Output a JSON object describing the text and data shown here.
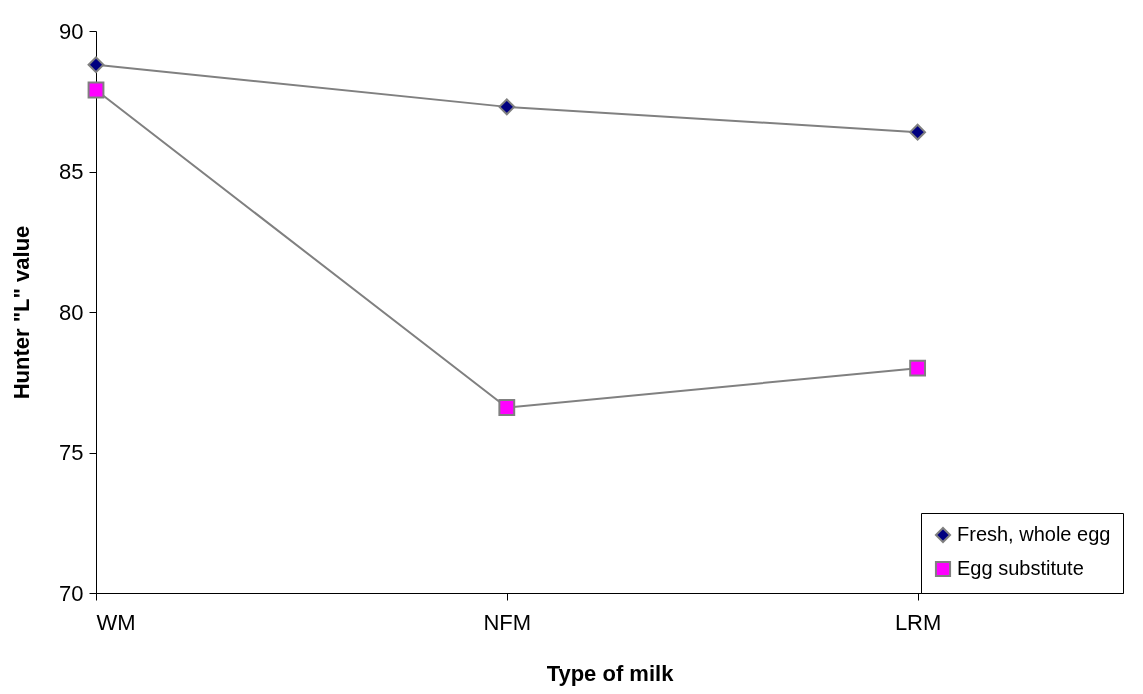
{
  "chart_data": {
    "type": "line",
    "xlabel": "Type of  milk",
    "ylabel": "Hunter  \"L\"  value",
    "categories": [
      "WM",
      "NFM",
      "LRM"
    ],
    "series": [
      {
        "name": "Fresh, whole egg",
        "color": "#000080",
        "marker": "diamond",
        "values": [
          88.8,
          87.3,
          86.4
        ]
      },
      {
        "name": "Egg substitute",
        "color": "#ff00ff",
        "marker": "square",
        "values": [
          87.9,
          76.6,
          78.0
        ]
      }
    ],
    "ylim": [
      70,
      90
    ],
    "yticks": [
      70,
      75,
      80,
      85,
      90
    ],
    "grid": false,
    "legend": "bottom right",
    "line_style": "solid"
  }
}
